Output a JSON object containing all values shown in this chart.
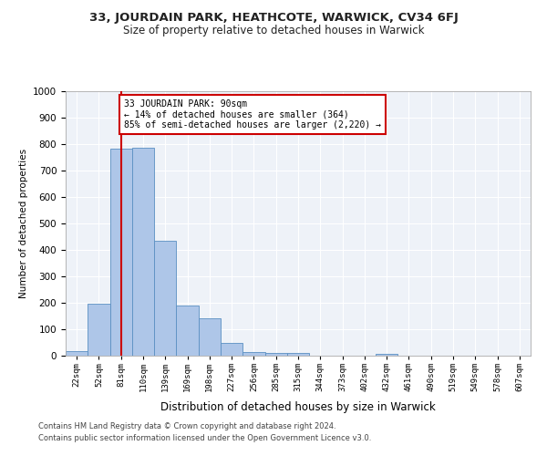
{
  "title_line1": "33, JOURDAIN PARK, HEATHCOTE, WARWICK, CV34 6FJ",
  "title_line2": "Size of property relative to detached houses in Warwick",
  "xlabel": "Distribution of detached houses by size in Warwick",
  "ylabel": "Number of detached properties",
  "categories": [
    "22sqm",
    "52sqm",
    "81sqm",
    "110sqm",
    "139sqm",
    "169sqm",
    "198sqm",
    "227sqm",
    "256sqm",
    "285sqm",
    "315sqm",
    "344sqm",
    "373sqm",
    "402sqm",
    "432sqm",
    "461sqm",
    "490sqm",
    "519sqm",
    "549sqm",
    "578sqm",
    "607sqm"
  ],
  "values": [
    17,
    196,
    783,
    786,
    435,
    190,
    140,
    48,
    15,
    10,
    10,
    0,
    0,
    0,
    8,
    0,
    0,
    0,
    0,
    0,
    0
  ],
  "bar_color": "#aec6e8",
  "bar_edge_color": "#5a8fc2",
  "vline_x": 2,
  "vline_color": "#cc0000",
  "annotation_text": "33 JOURDAIN PARK: 90sqm\n← 14% of detached houses are smaller (364)\n85% of semi-detached houses are larger (2,220) →",
  "annotation_box_color": "#ffffff",
  "annotation_box_edge": "#cc0000",
  "ylim": [
    0,
    1000
  ],
  "yticks": [
    0,
    100,
    200,
    300,
    400,
    500,
    600,
    700,
    800,
    900,
    1000
  ],
  "footer_line1": "Contains HM Land Registry data © Crown copyright and database right 2024.",
  "footer_line2": "Contains public sector information licensed under the Open Government Licence v3.0.",
  "bg_color": "#eef2f8"
}
